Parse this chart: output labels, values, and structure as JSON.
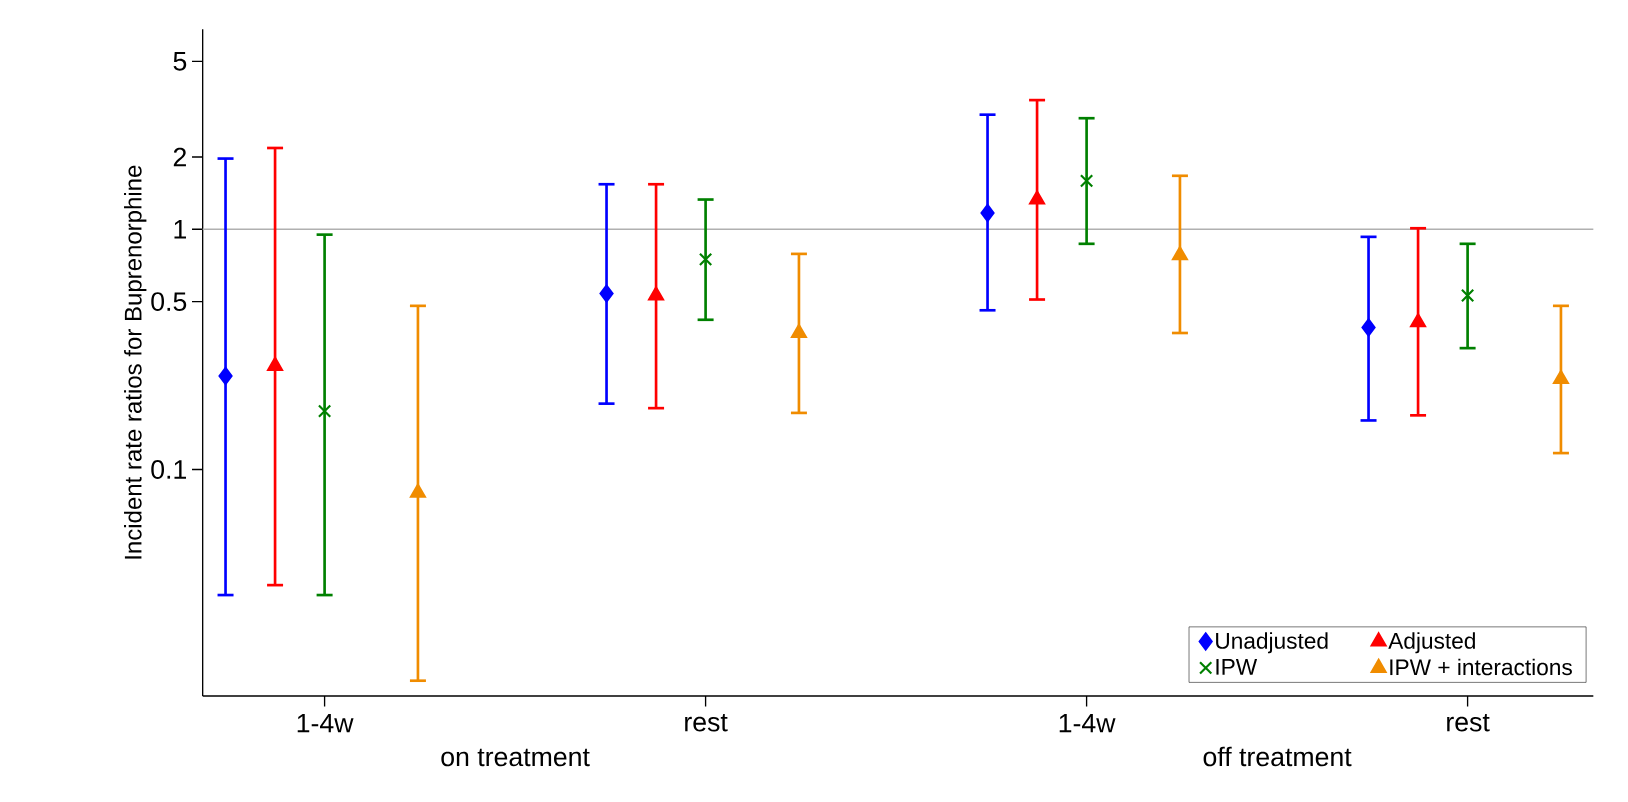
{
  "chart_data": {
    "type": "scatter",
    "ylabel": "Incident rate ratios for Buprenorphine",
    "categories": [
      "1-4w",
      "rest",
      "1-4w",
      "rest"
    ],
    "annotations": [
      "on treatment",
      "off treatment"
    ],
    "log": "y",
    "ylim": [
      0.0114,
      6.8
    ],
    "yticks": [
      0.1,
      0.5,
      1,
      2,
      5
    ],
    "legend": "bottom right",
    "grid": false,
    "ref_lines": [
      {
        "axis": "y",
        "value": 1,
        "color": "#b0b0b0"
      }
    ],
    "series": [
      {
        "name": "Unadjusted",
        "color": "#0000ff",
        "marker": "diamond",
        "values": [
          0.245,
          0.54,
          1.17,
          0.39
        ],
        "errors": [
          [
            0.03,
            1.97
          ],
          [
            0.188,
            1.54
          ],
          [
            0.46,
            3.0
          ],
          [
            0.16,
            0.93
          ]
        ]
      },
      {
        "name": "Adjusted",
        "color": "#ff0000",
        "marker": "triangle",
        "values": [
          0.27,
          0.53,
          1.33,
          0.41
        ],
        "errors": [
          [
            0.033,
            2.18
          ],
          [
            0.18,
            1.54
          ],
          [
            0.51,
            3.45
          ],
          [
            0.168,
            1.01
          ]
        ]
      },
      {
        "name": "IPW",
        "color": "#008000",
        "marker": "cross",
        "values": [
          0.175,
          0.75,
          1.59,
          0.53
        ],
        "errors": [
          [
            0.03,
            0.95
          ],
          [
            0.42,
            1.33
          ],
          [
            0.87,
            2.9
          ],
          [
            0.32,
            0.87
          ]
        ]
      },
      {
        "name": "IPW + interactions",
        "color": "#f08c00",
        "marker": "triangle",
        "values": [
          0.08,
          0.37,
          0.78,
          0.238
        ],
        "errors": [
          [
            0.0132,
            0.48
          ],
          [
            0.172,
            0.79
          ],
          [
            0.37,
            1.67
          ],
          [
            0.117,
            0.48
          ]
        ]
      }
    ]
  }
}
